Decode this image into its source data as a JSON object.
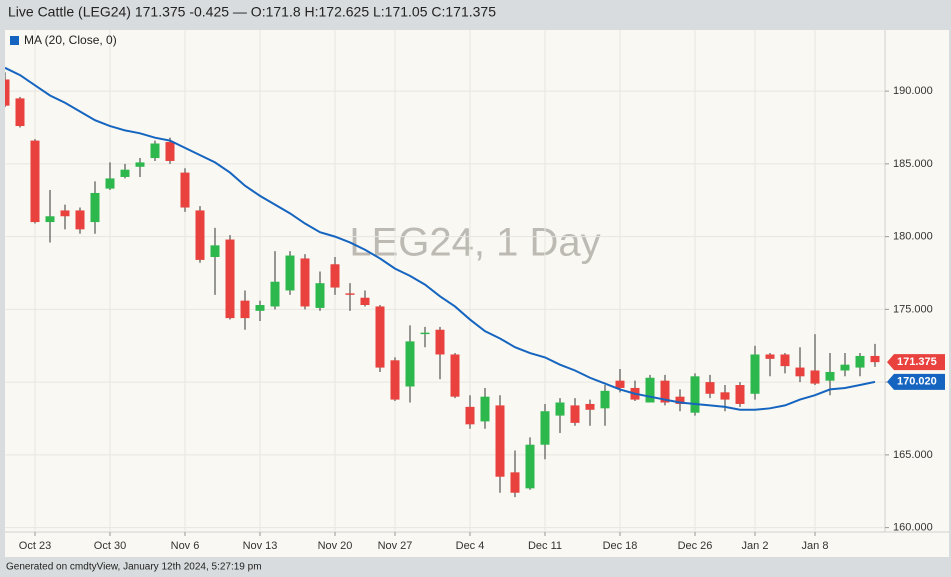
{
  "chart_data": {
    "type": "candlestick",
    "title": "Live Cattle (LEG24) 171.375 -0.425 — O:171.8 H:172.625 L:171.05 C:171.375",
    "watermark": "LEG24, 1 Day",
    "footer": "Generated on cmdtyView, January 12th 2024, 5:27:19 pm",
    "categories": [
      null,
      null,
      "Oct 23",
      null,
      null,
      null,
      null,
      "Oct 30",
      null,
      null,
      null,
      null,
      "Nov 6",
      null,
      null,
      null,
      null,
      "Nov 13",
      null,
      null,
      null,
      null,
      "Nov 20",
      null,
      null,
      null,
      "Nov 27",
      null,
      null,
      null,
      null,
      "Dec 4",
      null,
      null,
      null,
      null,
      "Dec 11",
      null,
      null,
      null,
      null,
      "Dec 18",
      null,
      null,
      null,
      null,
      "Dec 26",
      null,
      null,
      null,
      "Jan 2",
      null,
      null,
      null,
      "Jan 8",
      null,
      null,
      null,
      null
    ],
    "open": [
      190.8,
      189.5,
      186.6,
      181.0,
      181.8,
      181.8,
      181.0,
      183.3,
      184.1,
      184.8,
      185.4,
      186.5,
      184.4,
      181.8,
      178.6,
      179.8,
      175.6,
      174.9,
      175.2,
      176.3,
      178.5,
      175.1,
      178.1,
      176.1,
      175.8,
      175.2,
      171.5,
      169.7,
      173.3,
      173.6,
      171.9,
      168.3,
      167.3,
      168.4,
      163.8,
      162.7,
      165.7,
      167.7,
      168.4,
      168.5,
      168.2,
      170.1,
      169.6,
      168.6,
      170.1,
      169.0,
      167.9,
      170.0,
      169.3,
      169.8,
      169.2,
      171.9,
      171.9,
      171.0,
      170.8,
      170.1,
      170.8,
      171.0,
      171.8
    ],
    "high": [
      191.3,
      189.6,
      186.7,
      183.2,
      182.2,
      182.0,
      183.8,
      185.1,
      185.0,
      185.4,
      186.6,
      186.8,
      184.7,
      182.1,
      180.6,
      180.1,
      176.3,
      175.6,
      179.0,
      179.0,
      178.8,
      177.6,
      178.6,
      176.8,
      176.3,
      175.3,
      171.7,
      173.9,
      173.8,
      173.8,
      172.0,
      169.1,
      169.6,
      169.1,
      165.3,
      166.2,
      168.5,
      168.9,
      168.9,
      168.8,
      169.8,
      170.9,
      170.1,
      170.5,
      170.5,
      169.5,
      170.6,
      170.5,
      169.8,
      170.0,
      172.5,
      172.0,
      172.0,
      172.4,
      173.3,
      172.0,
      172.0,
      172.0,
      172.625
    ],
    "low": [
      188.9,
      187.5,
      180.9,
      179.6,
      180.5,
      180.2,
      180.2,
      183.2,
      184.0,
      184.1,
      185.2,
      185.0,
      181.7,
      178.2,
      176.0,
      174.3,
      173.6,
      174.2,
      175.0,
      176.0,
      175.0,
      174.9,
      176.0,
      174.9,
      175.2,
      170.7,
      168.7,
      168.6,
      172.4,
      170.2,
      168.9,
      166.8,
      166.8,
      162.4,
      162.1,
      162.6,
      164.7,
      166.5,
      167.0,
      167.0,
      167.0,
      169.3,
      168.7,
      168.6,
      168.4,
      168.0,
      167.7,
      168.9,
      168.0,
      168.3,
      168.8,
      170.4,
      170.6,
      170.0,
      169.8,
      169.1,
      170.4,
      170.4,
      171.05
    ],
    "close": [
      189.0,
      187.6,
      181.0,
      181.4,
      181.4,
      180.5,
      183.0,
      184.0,
      184.6,
      185.1,
      186.4,
      185.2,
      182.0,
      178.4,
      179.4,
      174.4,
      174.4,
      175.3,
      176.9,
      178.7,
      175.2,
      176.8,
      176.5,
      176.0,
      175.3,
      171.0,
      168.8,
      172.8,
      173.4,
      171.9,
      169.0,
      167.1,
      169.0,
      163.5,
      162.4,
      165.7,
      168.0,
      168.6,
      167.2,
      168.1,
      169.4,
      169.6,
      168.8,
      170.3,
      168.6,
      168.5,
      170.4,
      169.2,
      168.8,
      168.5,
      171.9,
      171.6,
      171.1,
      170.4,
      169.9,
      170.7,
      171.2,
      171.8,
      171.375
    ],
    "up_color": "#2db84d",
    "down_color": "#e8413e",
    "series": [
      {
        "name": "MA (20, Close, 0)",
        "color": "#1565c0",
        "values": [
          191.6,
          191.1,
          190.4,
          189.7,
          189.2,
          188.6,
          188.0,
          187.6,
          187.3,
          187.1,
          186.8,
          186.6,
          186.1,
          185.6,
          185.1,
          184.4,
          183.5,
          182.8,
          182.2,
          181.6,
          180.9,
          180.3,
          180.0,
          179.6,
          179.1,
          178.5,
          177.8,
          177.3,
          176.7,
          175.9,
          175.2,
          174.3,
          173.5,
          173.0,
          172.4,
          172.0,
          171.7,
          171.2,
          170.8,
          170.3,
          169.9,
          169.5,
          169.2,
          169.0,
          168.8,
          168.6,
          168.5,
          168.4,
          168.3,
          168.1,
          168.1,
          168.2,
          168.4,
          168.8,
          169.1,
          169.5,
          169.6,
          169.8,
          170.02
        ]
      }
    ],
    "price_tags": [
      {
        "value": 171.375,
        "label": "171.375",
        "color": "#e8413e"
      },
      {
        "value": 170.02,
        "label": "170.020",
        "color": "#1565c0"
      }
    ],
    "ylim": [
      159.7,
      194.2
    ],
    "yticks": [
      {
        "value": 160,
        "label": "160.000"
      },
      {
        "value": 165,
        "label": "165.000"
      },
      {
        "value": 170,
        "label": "170.000"
      },
      {
        "value": 175,
        "label": "175.000"
      },
      {
        "value": 180,
        "label": "180.000"
      },
      {
        "value": 185,
        "label": "185.000"
      },
      {
        "value": 190,
        "label": "190.000"
      }
    ],
    "y_axis_side": "right",
    "grid": true
  }
}
